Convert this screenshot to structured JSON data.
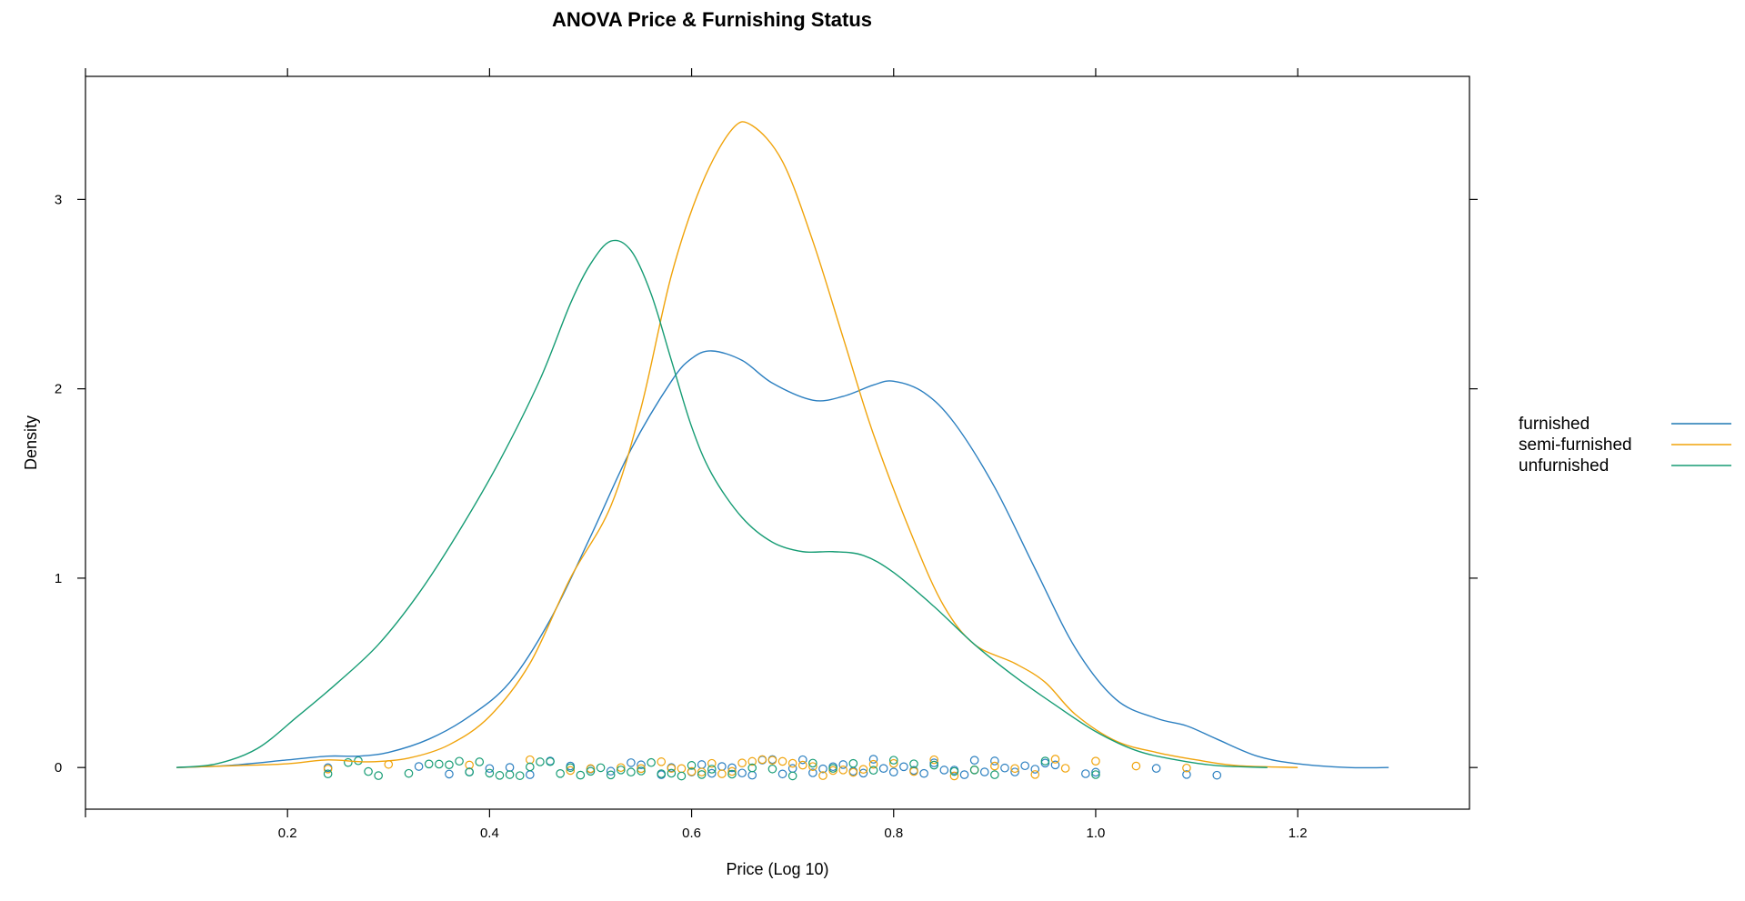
{
  "chart_data": {
    "type": "line",
    "title": "ANOVA Price & Furnishing Status",
    "xlabel": "Price (Log 10)",
    "ylabel": "Density",
    "xlim": [
      0.0,
      1.37
    ],
    "ylim": [
      -0.22,
      3.65
    ],
    "x_ticks": [
      0.2,
      0.4,
      0.6,
      0.8,
      1.0,
      1.2
    ],
    "x_tick_labels": [
      "0.2",
      "0.4",
      "0.6",
      "0.8",
      "1.0",
      "1.2"
    ],
    "y_ticks": [
      0,
      1,
      2,
      3
    ],
    "y_tick_labels": [
      "0",
      "1",
      "2",
      "3"
    ],
    "grid": false,
    "legend_position": "right",
    "legend": [
      {
        "name": "furnished",
        "color": "#1f78b4"
      },
      {
        "name": "semi-furnished",
        "color": "#f0a30a"
      },
      {
        "name": "unfurnished",
        "color": "#169c74"
      }
    ],
    "series": [
      {
        "name": "furnished",
        "color": "#2b7fc0",
        "points": [
          [
            0.09,
            0.0
          ],
          [
            0.14,
            0.01
          ],
          [
            0.2,
            0.04
          ],
          [
            0.24,
            0.06
          ],
          [
            0.27,
            0.06
          ],
          [
            0.3,
            0.08
          ],
          [
            0.34,
            0.15
          ],
          [
            0.38,
            0.27
          ],
          [
            0.42,
            0.45
          ],
          [
            0.46,
            0.78
          ],
          [
            0.5,
            1.22
          ],
          [
            0.54,
            1.68
          ],
          [
            0.58,
            2.04
          ],
          [
            0.6,
            2.16
          ],
          [
            0.62,
            2.2
          ],
          [
            0.65,
            2.15
          ],
          [
            0.68,
            2.03
          ],
          [
            0.72,
            1.94
          ],
          [
            0.75,
            1.96
          ],
          [
            0.78,
            2.02
          ],
          [
            0.8,
            2.04
          ],
          [
            0.83,
            1.98
          ],
          [
            0.86,
            1.82
          ],
          [
            0.9,
            1.48
          ],
          [
            0.94,
            1.05
          ],
          [
            0.98,
            0.63
          ],
          [
            1.02,
            0.36
          ],
          [
            1.06,
            0.26
          ],
          [
            1.09,
            0.22
          ],
          [
            1.12,
            0.15
          ],
          [
            1.16,
            0.06
          ],
          [
            1.2,
            0.02
          ],
          [
            1.25,
            0.0
          ],
          [
            1.29,
            0.0
          ]
        ]
      },
      {
        "name": "semi-furnished",
        "color": "#f0a30a",
        "points": [
          [
            0.09,
            0.0
          ],
          [
            0.15,
            0.01
          ],
          [
            0.2,
            0.02
          ],
          [
            0.24,
            0.04
          ],
          [
            0.28,
            0.03
          ],
          [
            0.32,
            0.05
          ],
          [
            0.36,
            0.12
          ],
          [
            0.4,
            0.27
          ],
          [
            0.44,
            0.55
          ],
          [
            0.48,
            1.0
          ],
          [
            0.52,
            1.38
          ],
          [
            0.55,
            1.9
          ],
          [
            0.58,
            2.6
          ],
          [
            0.61,
            3.08
          ],
          [
            0.64,
            3.37
          ],
          [
            0.66,
            3.39
          ],
          [
            0.69,
            3.2
          ],
          [
            0.72,
            2.78
          ],
          [
            0.75,
            2.27
          ],
          [
            0.78,
            1.76
          ],
          [
            0.82,
            1.2
          ],
          [
            0.85,
            0.85
          ],
          [
            0.88,
            0.65
          ],
          [
            0.92,
            0.55
          ],
          [
            0.95,
            0.45
          ],
          [
            0.98,
            0.28
          ],
          [
            1.02,
            0.14
          ],
          [
            1.06,
            0.08
          ],
          [
            1.1,
            0.04
          ],
          [
            1.14,
            0.01
          ],
          [
            1.2,
            0.0
          ]
        ]
      },
      {
        "name": "unfurnished",
        "color": "#169c74",
        "points": [
          [
            0.09,
            0.0
          ],
          [
            0.13,
            0.02
          ],
          [
            0.17,
            0.1
          ],
          [
            0.21,
            0.27
          ],
          [
            0.25,
            0.45
          ],
          [
            0.29,
            0.65
          ],
          [
            0.33,
            0.92
          ],
          [
            0.37,
            1.25
          ],
          [
            0.41,
            1.62
          ],
          [
            0.45,
            2.05
          ],
          [
            0.48,
            2.45
          ],
          [
            0.5,
            2.66
          ],
          [
            0.52,
            2.78
          ],
          [
            0.54,
            2.73
          ],
          [
            0.56,
            2.5
          ],
          [
            0.58,
            2.15
          ],
          [
            0.6,
            1.8
          ],
          [
            0.62,
            1.55
          ],
          [
            0.65,
            1.32
          ],
          [
            0.68,
            1.19
          ],
          [
            0.71,
            1.14
          ],
          [
            0.74,
            1.14
          ],
          [
            0.77,
            1.12
          ],
          [
            0.8,
            1.03
          ],
          [
            0.84,
            0.85
          ],
          [
            0.88,
            0.65
          ],
          [
            0.92,
            0.48
          ],
          [
            0.96,
            0.33
          ],
          [
            1.0,
            0.19
          ],
          [
            1.04,
            0.09
          ],
          [
            1.08,
            0.04
          ],
          [
            1.12,
            0.01
          ],
          [
            1.17,
            0.0
          ]
        ]
      }
    ],
    "rug": {
      "furnished": [
        0.24,
        0.33,
        0.36,
        0.38,
        0.4,
        0.42,
        0.44,
        0.46,
        0.48,
        0.5,
        0.52,
        0.54,
        0.55,
        0.57,
        0.58,
        0.6,
        0.61,
        0.62,
        0.63,
        0.64,
        0.65,
        0.66,
        0.67,
        0.68,
        0.69,
        0.7,
        0.71,
        0.72,
        0.73,
        0.74,
        0.75,
        0.76,
        0.77,
        0.78,
        0.79,
        0.8,
        0.81,
        0.82,
        0.83,
        0.84,
        0.85,
        0.86,
        0.87,
        0.88,
        0.89,
        0.9,
        0.91,
        0.92,
        0.93,
        0.94,
        0.95,
        0.96,
        0.99,
        1.0,
        1.06,
        1.09,
        1.12
      ],
      "semi-furnished": [
        0.24,
        0.3,
        0.38,
        0.44,
        0.48,
        0.5,
        0.53,
        0.55,
        0.57,
        0.58,
        0.59,
        0.6,
        0.61,
        0.62,
        0.63,
        0.64,
        0.65,
        0.66,
        0.67,
        0.68,
        0.69,
        0.7,
        0.71,
        0.72,
        0.73,
        0.74,
        0.75,
        0.76,
        0.77,
        0.78,
        0.8,
        0.82,
        0.84,
        0.86,
        0.88,
        0.9,
        0.92,
        0.94,
        0.96,
        0.97,
        1.0,
        1.04,
        1.09
      ],
      "unfurnished": [
        0.24,
        0.26,
        0.27,
        0.28,
        0.29,
        0.32,
        0.34,
        0.35,
        0.36,
        0.37,
        0.38,
        0.39,
        0.4,
        0.41,
        0.42,
        0.43,
        0.44,
        0.45,
        0.46,
        0.47,
        0.48,
        0.49,
        0.5,
        0.51,
        0.52,
        0.53,
        0.54,
        0.55,
        0.56,
        0.57,
        0.58,
        0.59,
        0.6,
        0.61,
        0.62,
        0.64,
        0.66,
        0.68,
        0.7,
        0.72,
        0.74,
        0.76,
        0.78,
        0.8,
        0.82,
        0.84,
        0.86,
        0.88,
        0.9,
        0.95,
        1.0
      ]
    }
  }
}
